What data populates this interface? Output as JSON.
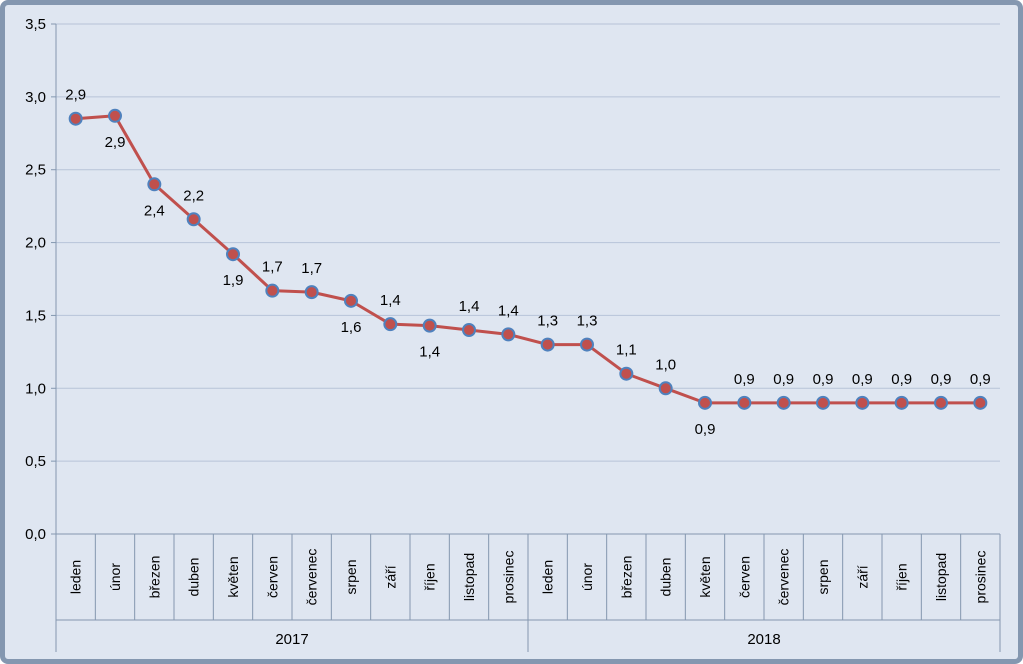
{
  "chart_data": {
    "type": "line",
    "title": "",
    "xlabel": "",
    "ylabel": "",
    "ylim": [
      0,
      3.5
    ],
    "y_ticks": [
      "0,0",
      "0,5",
      "1,0",
      "1,5",
      "2,0",
      "2,5",
      "3,0",
      "3,5"
    ],
    "grid": true,
    "legend": "none",
    "colors": {
      "line": "#c0504d",
      "marker_fill": "#c0504d",
      "marker_stroke": "#4f81bd",
      "plot_bg": "#dfe6f1",
      "border": "#8497b0",
      "gridline": "#b7c3d8"
    },
    "groups": [
      {
        "label": "2017",
        "categories": [
          "leden",
          "únor",
          "březen",
          "duben",
          "květen",
          "červen",
          "červenec",
          "srpen",
          "září",
          "říjen",
          "listopad",
          "prosinec"
        ]
      },
      {
        "label": "2018",
        "categories": [
          "leden",
          "únor",
          "březen",
          "duben",
          "květen",
          "červen",
          "červenec",
          "srpen",
          "září",
          "říjen",
          "listopad",
          "prosinec"
        ]
      }
    ],
    "series": [
      {
        "values": [
          2.85,
          2.87,
          2.4,
          2.16,
          1.92,
          1.67,
          1.66,
          1.6,
          1.44,
          1.43,
          1.4,
          1.37,
          1.3,
          1.3,
          1.1,
          1.0,
          0.9,
          0.9,
          0.9,
          0.9,
          0.9,
          0.9,
          0.9,
          0.9
        ],
        "data_labels": [
          "2,9",
          "2,9",
          "2,4",
          "2,2",
          "1,9",
          "1,7",
          "1,7",
          "1,6",
          "1,4",
          "1,4",
          "1,4",
          "1,4",
          "1,3",
          "1,3",
          "1,1",
          "1,0",
          "0,9",
          "0,9",
          "0,9",
          "0,9",
          "0,9",
          "0,9",
          "0,9",
          "0,9"
        ],
        "label_positions": [
          "above",
          "below",
          "below",
          "above",
          "below",
          "above",
          "above",
          "below",
          "above",
          "below",
          "above",
          "above",
          "above",
          "above",
          "above",
          "above",
          "below",
          "above",
          "above",
          "above",
          "above",
          "above",
          "above",
          "above"
        ]
      }
    ]
  }
}
